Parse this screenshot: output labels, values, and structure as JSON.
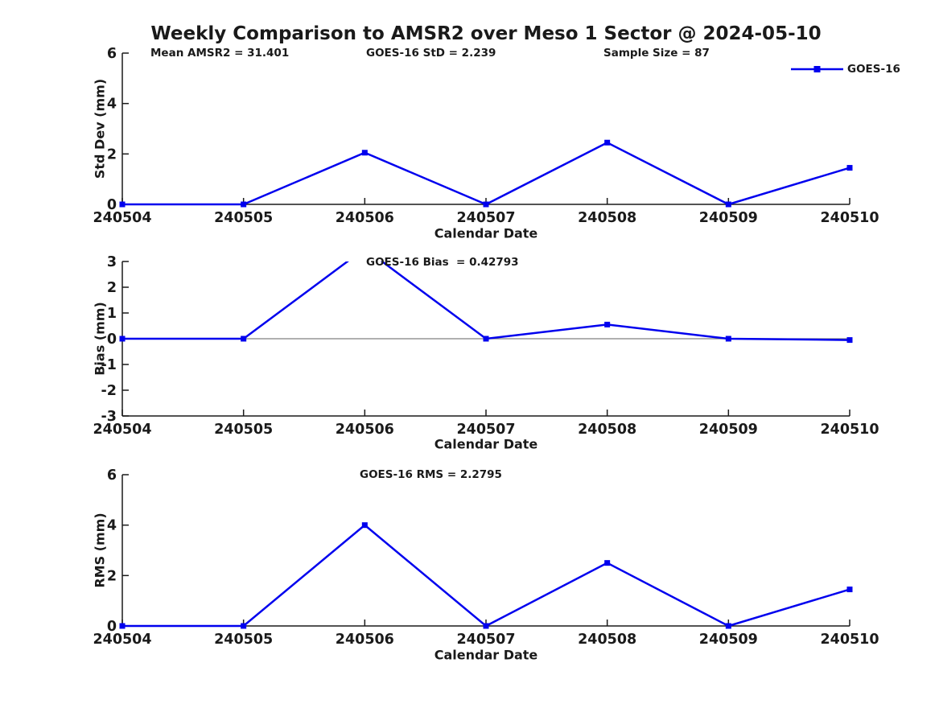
{
  "title": "Weekly Comparison to AMSR2 over Meso 1 Sector @ 2024-05-10",
  "legend": {
    "label": "GOES-16",
    "position": "top-right"
  },
  "colors": {
    "line": "#0000EE",
    "zero_line": "#808080",
    "axis": "#1a1a1a",
    "text": "#1a1a1a",
    "background": "#ffffff"
  },
  "stats": {
    "mean_amsr2": 31.401,
    "goes16_std": 2.239,
    "sample_size": 87,
    "goes16_bias": 0.42793,
    "goes16_rms": 2.2795
  },
  "chart_data": [
    {
      "type": "line",
      "categories": [
        "240504",
        "240505",
        "240506",
        "240507",
        "240508",
        "240509",
        "240510"
      ],
      "series": [
        {
          "name": "GOES-16",
          "values": [
            0,
            0,
            2.05,
            0,
            2.45,
            0,
            1.45
          ]
        }
      ],
      "title": "",
      "xlabel": "Calendar Date",
      "ylabel": "Std Dev (mm)",
      "ylim": [
        0,
        6
      ],
      "yticks": [
        0,
        2,
        4,
        6
      ],
      "grid": false,
      "zero_line": false,
      "annotations": [
        "Mean AMSR2 = 31.401",
        "GOES-16 StD = 2.239",
        "Sample Size = 87"
      ]
    },
    {
      "type": "line",
      "categories": [
        "240504",
        "240505",
        "240506",
        "240507",
        "240508",
        "240509",
        "240510"
      ],
      "series": [
        {
          "name": "GOES-16",
          "values": [
            0,
            0,
            3.5,
            0,
            0.55,
            0,
            -0.05
          ]
        }
      ],
      "title": "",
      "xlabel": "Calendar Date",
      "ylabel": "Bias (mm)",
      "ylim": [
        -3,
        3
      ],
      "yticks": [
        -3,
        -2,
        -1,
        0,
        1,
        2,
        3
      ],
      "grid": false,
      "zero_line": true,
      "annotations": [
        "GOES-16 Bias  = 0.42793"
      ]
    },
    {
      "type": "line",
      "categories": [
        "240504",
        "240505",
        "240506",
        "240507",
        "240508",
        "240509",
        "240510"
      ],
      "series": [
        {
          "name": "GOES-16",
          "values": [
            0,
            0,
            4.0,
            0,
            2.5,
            0,
            1.45
          ]
        }
      ],
      "title": "",
      "xlabel": "Calendar Date",
      "ylabel": "RMS (mm)",
      "ylim": [
        0,
        6
      ],
      "yticks": [
        0,
        2,
        4,
        6
      ],
      "grid": false,
      "zero_line": false,
      "annotations": [
        "GOES-16 RMS = 2.2795"
      ]
    }
  ]
}
